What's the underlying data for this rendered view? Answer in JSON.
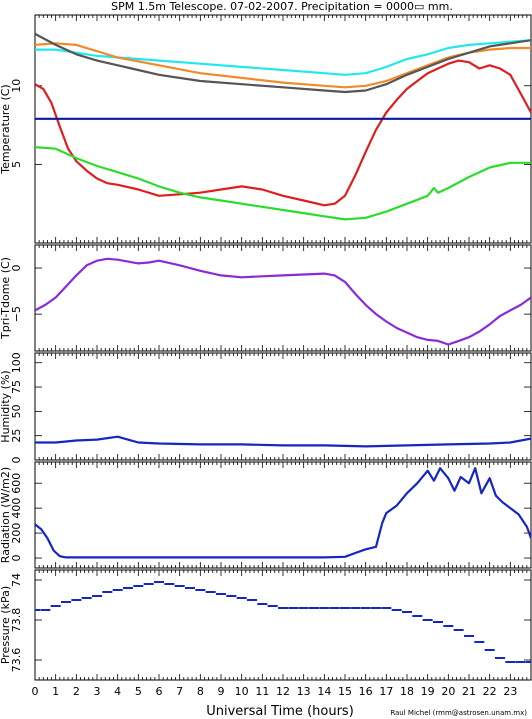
{
  "title": "SPM 1.5m Telescope. 07-02-2007. Precipitation = 0000▭ mm.",
  "xlabel": "Universal Time (hours)",
  "credit": "Raul Michel (rmm@astrosen.unam.mx)",
  "colors": {
    "red": "#dd1f1f",
    "orange": "#f08a2a",
    "cyan": "#22e8ee",
    "gray": "#555555",
    "green": "#2cdc2c",
    "navy": "#0a1a9e",
    "purple": "#8a2bd8",
    "blue": "#1626c0"
  },
  "chart_data": [
    {
      "type": "line",
      "panel": "temperature",
      "ylabel": "Temperature (C)",
      "xlim": [
        0,
        24
      ],
      "ylim": [
        0,
        14.5
      ],
      "x_ticks": [
        0,
        1,
        2,
        3,
        4,
        5,
        6,
        7,
        8,
        9,
        10,
        11,
        12,
        13,
        14,
        15,
        16,
        17,
        18,
        19,
        20,
        21,
        22,
        23
      ],
      "y_ticks": [
        5,
        10
      ],
      "series": [
        {
          "color": "#22e8ee",
          "x": [
            0,
            1,
            2,
            3,
            5,
            8,
            10,
            12,
            14,
            15,
            16,
            17,
            18,
            19,
            20,
            21,
            22,
            23,
            24
          ],
          "y": [
            12.3,
            12.3,
            12.1,
            11.9,
            11.7,
            11.4,
            11.2,
            11.0,
            10.8,
            10.7,
            10.8,
            11.2,
            11.7,
            12.0,
            12.4,
            12.6,
            12.7,
            12.8,
            12.9
          ]
        },
        {
          "color": "#f08a2a",
          "x": [
            0,
            1,
            2,
            3,
            4,
            6,
            8,
            10,
            12,
            14,
            15,
            16,
            17,
            18,
            19,
            20,
            21,
            22,
            23,
            24
          ],
          "y": [
            12.6,
            12.7,
            12.6,
            12.2,
            11.8,
            11.3,
            10.8,
            10.5,
            10.2,
            10.0,
            9.9,
            10.0,
            10.3,
            10.8,
            11.3,
            11.8,
            12.1,
            12.3,
            12.4,
            12.4
          ]
        },
        {
          "color": "#555555",
          "x": [
            0,
            1,
            2,
            3,
            4,
            6,
            8,
            10,
            12,
            14,
            15,
            16,
            17,
            18,
            19,
            20,
            21,
            22,
            23,
            24
          ],
          "y": [
            13.3,
            12.6,
            12.0,
            11.6,
            11.3,
            10.7,
            10.3,
            10.1,
            9.9,
            9.7,
            9.6,
            9.7,
            10.1,
            10.7,
            11.2,
            11.7,
            12.1,
            12.5,
            12.7,
            12.9
          ]
        },
        {
          "color": "#dd1f1f",
          "x": [
            0,
            0.4,
            0.8,
            1.2,
            1.6,
            2,
            2.5,
            3,
            3.5,
            4,
            5,
            6,
            7,
            8,
            9,
            10,
            11,
            12,
            13,
            14,
            14.5,
            15,
            15.5,
            16,
            16.5,
            17,
            17.5,
            18,
            18.5,
            19,
            19.5,
            20,
            20.5,
            21,
            21.5,
            22,
            22.5,
            23,
            23.5,
            24
          ],
          "y": [
            10.1,
            9.8,
            8.9,
            7.4,
            6.0,
            5.2,
            4.6,
            4.1,
            3.8,
            3.7,
            3.4,
            3.0,
            3.1,
            3.2,
            3.4,
            3.6,
            3.4,
            3.0,
            2.7,
            2.4,
            2.5,
            3.0,
            4.3,
            5.8,
            7.2,
            8.3,
            9.1,
            9.8,
            10.3,
            10.8,
            11.1,
            11.4,
            11.6,
            11.5,
            11.1,
            11.3,
            11.1,
            10.7,
            9.5,
            8.3
          ]
        },
        {
          "color": "#0a1a9e",
          "x": [
            0,
            24
          ],
          "y": [
            7.9,
            7.9
          ]
        },
        {
          "color": "#2cdc2c",
          "x": [
            0,
            1,
            2,
            3,
            4,
            5,
            6,
            7,
            8,
            9,
            10,
            11,
            12,
            13,
            14,
            15,
            16,
            17,
            18,
            19,
            19.3,
            19.5,
            20,
            21,
            22,
            23,
            24
          ],
          "y": [
            6.1,
            6.0,
            5.4,
            4.9,
            4.5,
            4.1,
            3.6,
            3.2,
            2.9,
            2.7,
            2.5,
            2.3,
            2.1,
            1.9,
            1.7,
            1.5,
            1.6,
            2.0,
            2.5,
            3.0,
            3.5,
            3.2,
            3.5,
            4.2,
            4.8,
            5.1,
            5.1
          ]
        }
      ]
    },
    {
      "type": "line",
      "panel": "tpri-tdome",
      "ylabel": "Tpri-Tdome (C)",
      "xlim": [
        0,
        24
      ],
      "ylim": [
        -9,
        2.5
      ],
      "y_ticks": [
        0,
        -5
      ],
      "series": [
        {
          "color": "#8a2bd8",
          "x": [
            0,
            0.5,
            1,
            1.5,
            2,
            2.5,
            3,
            3.5,
            4,
            4.5,
            5,
            5.5,
            6,
            7,
            8,
            9,
            10,
            11,
            12,
            13,
            14,
            14.5,
            15,
            15.5,
            16,
            16.5,
            17,
            17.5,
            18,
            18.5,
            19,
            19.5,
            20,
            20.5,
            21,
            21.5,
            22,
            22.5,
            23,
            23.5,
            24
          ],
          "y": [
            -4.6,
            -4.0,
            -3.2,
            -2.0,
            -0.8,
            0.3,
            0.8,
            1.0,
            0.9,
            0.7,
            0.5,
            0.6,
            0.8,
            0.3,
            -0.3,
            -0.8,
            -1.0,
            -0.9,
            -0.8,
            -0.7,
            -0.6,
            -0.8,
            -1.5,
            -2.8,
            -4.0,
            -5.0,
            -5.8,
            -6.5,
            -7.0,
            -7.5,
            -7.8,
            -7.9,
            -8.3,
            -7.9,
            -7.5,
            -6.9,
            -6.1,
            -5.2,
            -4.6,
            -4.0,
            -3.2
          ]
        }
      ]
    },
    {
      "type": "line",
      "panel": "humidity",
      "ylabel": "Humidity (%)",
      "xlim": [
        0,
        24
      ],
      "ylim": [
        0,
        110
      ],
      "y_ticks": [
        0,
        25,
        50,
        75,
        100
      ],
      "series": [
        {
          "color": "#1626c0",
          "x": [
            0,
            1,
            2,
            3,
            4,
            5,
            6,
            8,
            10,
            12,
            14,
            16,
            18,
            20,
            22,
            23,
            24
          ],
          "y": [
            18,
            18,
            20,
            21,
            24,
            18,
            17,
            16,
            16,
            15,
            15,
            14,
            15,
            16,
            17,
            18,
            22
          ]
        }
      ]
    },
    {
      "type": "line",
      "panel": "radiation",
      "ylabel": "Radiation (W/m2)",
      "xlim": [
        0,
        24
      ],
      "ylim": [
        -80,
        770
      ],
      "y_ticks": [
        0,
        200,
        400,
        600
      ],
      "series": [
        {
          "color": "#1626c0",
          "x": [
            0,
            0.3,
            0.6,
            0.9,
            1.2,
            1.5,
            2,
            4,
            6,
            8,
            10,
            12,
            14,
            15,
            15.5,
            16,
            16.5,
            16.8,
            17,
            17.5,
            18,
            18.5,
            19,
            19.3,
            19.6,
            20,
            20.3,
            20.6,
            21,
            21.3,
            21.6,
            22,
            22.3,
            22.6,
            23,
            23.4,
            23.8,
            24
          ],
          "y": [
            270,
            230,
            160,
            60,
            15,
            5,
            5,
            5,
            5,
            5,
            5,
            5,
            5,
            10,
            40,
            70,
            90,
            280,
            360,
            420,
            520,
            600,
            700,
            620,
            720,
            640,
            540,
            650,
            600,
            720,
            520,
            640,
            500,
            450,
            400,
            350,
            250,
            160
          ]
        }
      ]
    },
    {
      "type": "scatter",
      "panel": "pressure",
      "ylabel": "Pressure (kPa)",
      "xlim": [
        0,
        24
      ],
      "ylim": [
        73.5,
        74.05
      ],
      "y_ticks": [
        73.6,
        73.8,
        74
      ],
      "series": [
        {
          "color": "#1626c0",
          "x": [
            0,
            0.5,
            1,
            1.5,
            2,
            2.5,
            3,
            3.5,
            4,
            4.5,
            5,
            5.5,
            6,
            6.5,
            7,
            7.5,
            8,
            8.5,
            9,
            9.5,
            10,
            10.5,
            11,
            11.5,
            12,
            12.5,
            13,
            13.5,
            14,
            14.5,
            15,
            15.5,
            16,
            16.5,
            17,
            17.5,
            18,
            18.5,
            19,
            19.5,
            20,
            20.5,
            21,
            21.5,
            22,
            22.5,
            23,
            23.5,
            24
          ],
          "y": [
            73.85,
            73.85,
            73.87,
            73.89,
            73.9,
            73.91,
            73.92,
            73.94,
            73.95,
            73.96,
            73.97,
            73.98,
            73.99,
            73.98,
            73.97,
            73.96,
            73.95,
            73.94,
            73.93,
            73.92,
            73.91,
            73.9,
            73.88,
            73.87,
            73.86,
            73.86,
            73.86,
            73.86,
            73.86,
            73.86,
            73.86,
            73.86,
            73.86,
            73.86,
            73.86,
            73.85,
            73.84,
            73.82,
            73.8,
            73.79,
            73.77,
            73.75,
            73.72,
            73.69,
            73.65,
            73.61,
            73.59,
            73.59,
            73.59
          ]
        }
      ]
    }
  ]
}
